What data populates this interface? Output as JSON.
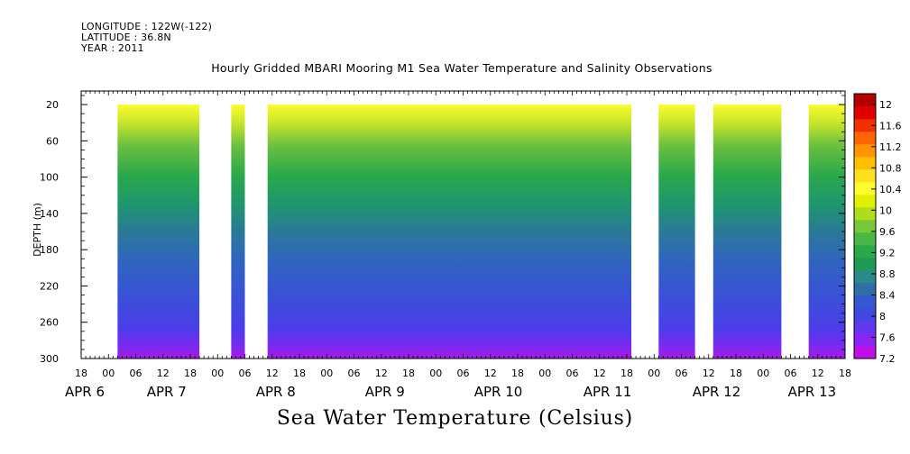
{
  "header": {
    "longitude": "LONGITUDE : 122W(-122)",
    "latitude": "LATITUDE : 36.8N",
    "year": "YEAR : 2011"
  },
  "chart_data": {
    "type": "heatmap",
    "title": "Hourly Gridded MBARI Mooring M1 Sea Water Temperature and Salinity Observations",
    "caption": "Sea Water Temperature (Celsius)",
    "ylabel": "DEPTH (m)",
    "y_reversed": true,
    "ylim": [
      300,
      5
    ],
    "y_ticks": [
      20,
      60,
      100,
      140,
      180,
      220,
      260,
      300
    ],
    "x_range_hours": [
      -6,
      162
    ],
    "x_tick_labels": [
      "18",
      "00",
      "06",
      "12",
      "18",
      "00",
      "06",
      "12",
      "18",
      "00",
      "06",
      "12",
      "18",
      "00",
      "06",
      "12",
      "18",
      "00",
      "06",
      "12",
      "18",
      "00",
      "06",
      "12",
      "18",
      "00",
      "06",
      "12",
      "18"
    ],
    "date_labels": [
      {
        "label": "APR  6",
        "hour": -6
      },
      {
        "label": "APR  7",
        "hour": 12
      },
      {
        "label": "APR  8",
        "hour": 36
      },
      {
        "label": "APR  9",
        "hour": 60
      },
      {
        "label": "APR 10",
        "hour": 84
      },
      {
        "label": "APR 11",
        "hour": 108
      },
      {
        "label": "APR 12",
        "hour": 132
      },
      {
        "label": "APR 13",
        "hour": 153
      }
    ],
    "data_segments_hours": [
      [
        2,
        20
      ],
      [
        27,
        30
      ],
      [
        35,
        115
      ],
      [
        121,
        129
      ],
      [
        133,
        148
      ],
      [
        154,
        162
      ]
    ],
    "depth_profile": {
      "depth_m": [
        20,
        40,
        60,
        80,
        100,
        120,
        140,
        160,
        180,
        200,
        220,
        240,
        260,
        280,
        300
      ],
      "temperature_c": [
        10.3,
        9.8,
        9.4,
        9.1,
        8.85,
        8.6,
        8.45,
        8.3,
        8.15,
        8.0,
        7.9,
        7.8,
        7.7,
        7.5,
        7.35
      ]
    },
    "colorbar": {
      "ticks": [
        12,
        11.6,
        11.2,
        10.8,
        10.4,
        10,
        9.6,
        9.2,
        8.8,
        8.4,
        8,
        7.6,
        7.2
      ],
      "min": 7.2,
      "max": 12.2,
      "colors": [
        "#bf10e8",
        "#8a24f2",
        "#6038f0",
        "#4048e0",
        "#3358d0",
        "#2e6fa8",
        "#2a8a8a",
        "#1f9a55",
        "#2aa84a",
        "#4ab848",
        "#7ac83a",
        "#b0dc20",
        "#e0f000",
        "#fcfc30",
        "#ffe020",
        "#ffc000",
        "#ff9400",
        "#ff6400",
        "#f03000",
        "#e00000",
        "#b40000"
      ]
    }
  }
}
